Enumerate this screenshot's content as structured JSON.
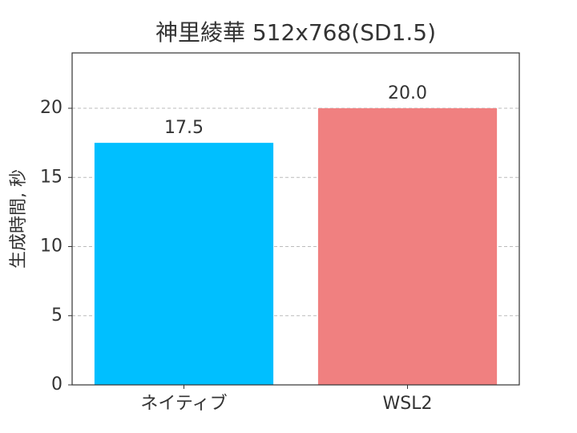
{
  "chart_data": {
    "type": "bar",
    "title": "神里綾華 512x768(SD1.5)",
    "y_label": "生成時間, 秒",
    "categories": [
      "ネイティブ",
      "WSL2"
    ],
    "values": [
      17.5,
      20.0
    ],
    "value_labels": [
      "17.5",
      "20.0"
    ],
    "colors": [
      "#00bfff",
      "#f08080"
    ],
    "ylim": [
      0,
      24
    ],
    "yticks": [
      0,
      5,
      10,
      15,
      20
    ],
    "grid": true
  }
}
